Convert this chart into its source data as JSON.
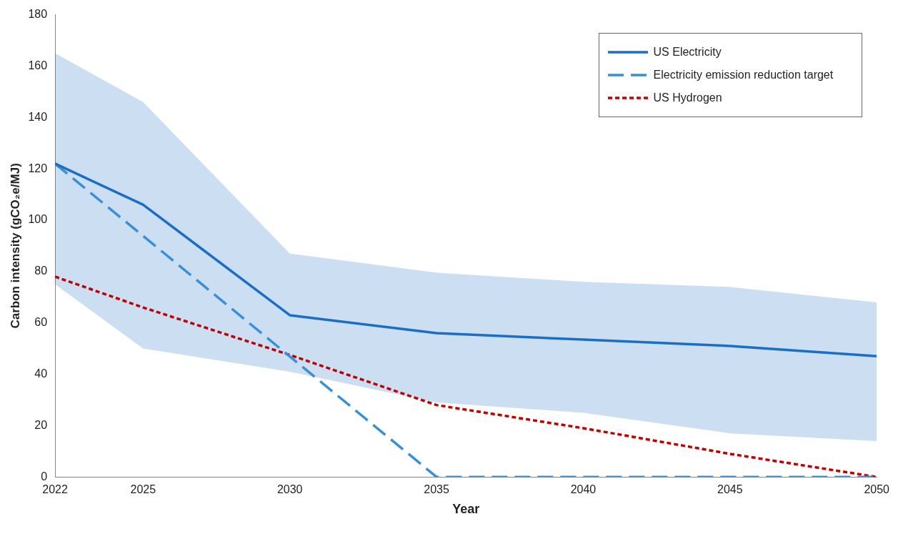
{
  "chart_data": {
    "type": "line",
    "xlabel": "Year",
    "ylabel": "Carbon intensity (gCO₂e/MJ)",
    "xlim": [
      2022,
      2050
    ],
    "xticks": [
      2022,
      2025,
      2030,
      2035,
      2040,
      2045,
      2050
    ],
    "ylim": [
      0,
      180
    ],
    "yticks": [
      0,
      20,
      40,
      60,
      80,
      100,
      120,
      140,
      160,
      180
    ],
    "grid": false,
    "legend": "top right",
    "marker": "none",
    "series": [
      {
        "name": "US Electricity",
        "color": "#1a6fc4",
        "line_style": "solid",
        "x": [
          2022,
          2025,
          2030,
          2035,
          2040,
          2045,
          2050
        ],
        "values": [
          122,
          106,
          63,
          56,
          53.5,
          51,
          47
        ],
        "lower": [
          75,
          50,
          41,
          29,
          25,
          17,
          14
        ],
        "upper": [
          165,
          146,
          87,
          79.5,
          76,
          74,
          68
        ]
      },
      {
        "name": "Electricity emission reduction target",
        "color": "#3a8fd6",
        "line_style": "dashed",
        "x": [
          2022,
          2035,
          2040,
          2045,
          2050
        ],
        "values": [
          122,
          0,
          0,
          0,
          0
        ]
      },
      {
        "name": "US Hydrogen",
        "color": "#c00000",
        "line_style": "dotted",
        "x": [
          2022,
          2025,
          2030,
          2035,
          2040,
          2045,
          2050
        ],
        "values": [
          78,
          66,
          47.5,
          28,
          19,
          9,
          0
        ]
      }
    ]
  }
}
